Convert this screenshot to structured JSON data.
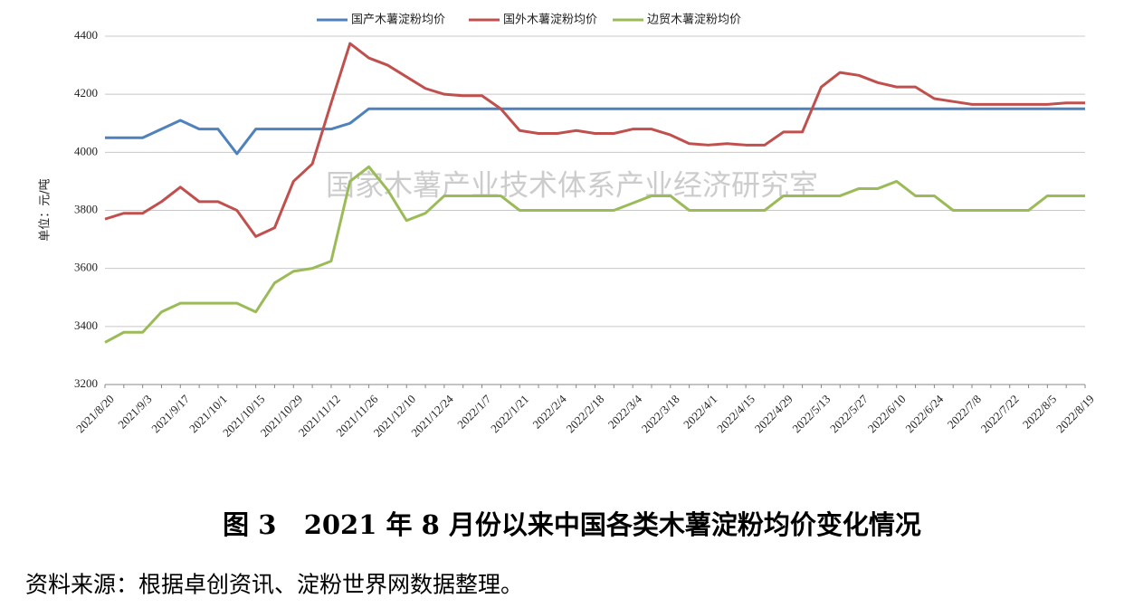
{
  "chart_data": {
    "type": "line",
    "y_label": "单位：元/吨",
    "watermark": "国家木薯产业技术体系产业经济研究室",
    "caption": "图 3   2021 年 8 月份以来中国各类木薯淀粉均价变化情况",
    "source": "资料来源：根据卓创资讯、淀粉世界网数据整理。",
    "categories": [
      "2021/8/20",
      null,
      "2021/9/3",
      null,
      "2021/9/17",
      null,
      "2021/10/1",
      null,
      "2021/10/15",
      null,
      "2021/10/29",
      null,
      "2021/11/12",
      null,
      "2021/11/26",
      null,
      "2021/12/10",
      null,
      "2021/12/24",
      null,
      "2022/1/7",
      null,
      "2022/1/21",
      null,
      "2022/2/4",
      null,
      "2022/2/18",
      null,
      "2022/3/4",
      null,
      "2022/3/18",
      null,
      "2022/4/1",
      null,
      "2022/4/15",
      null,
      "2022/4/29",
      null,
      "2022/5/13",
      null,
      "2022/5/27",
      null,
      "2022/6/10",
      null,
      "2022/6/24",
      null,
      "2022/7/8",
      null,
      "2022/7/22",
      null,
      "2022/8/5",
      null,
      "2022/8/19"
    ],
    "series": [
      {
        "name": "国产木薯淀粉均价",
        "color": "#4f81bd",
        "values": [
          4050,
          4050,
          4050,
          4080,
          4110,
          4080,
          4080,
          3995,
          4080,
          4080,
          4080,
          4080,
          4080,
          4100,
          4150,
          4150,
          4150,
          4150,
          4150,
          4150,
          4150,
          4150,
          4150,
          4150,
          4150,
          4150,
          4150,
          4150,
          4150,
          4150,
          4150,
          4150,
          4150,
          4150,
          4150,
          4150,
          4150,
          4150,
          4150,
          4150,
          4150,
          4150,
          4150,
          4150,
          4150,
          4150,
          4150,
          4150,
          4150,
          4150,
          4150,
          4150,
          4150
        ]
      },
      {
        "name": "国外木薯淀粉均价",
        "color": "#c0504d",
        "values": [
          3770,
          3790,
          3790,
          3830,
          3880,
          3830,
          3830,
          3800,
          3710,
          3740,
          3900,
          3960,
          4170,
          4375,
          4325,
          4300,
          4260,
          4220,
          4200,
          4195,
          4195,
          4150,
          4075,
          4065,
          4065,
          4075,
          4065,
          4065,
          4080,
          4080,
          4060,
          4030,
          4025,
          4030,
          4025,
          4025,
          4070,
          4070,
          4225,
          4275,
          4265,
          4240,
          4225,
          4225,
          4185,
          4175,
          4165,
          4165,
          4165,
          4165,
          4165,
          4170,
          4170
        ]
      },
      {
        "name": "边贸木薯淀粉均价",
        "color": "#9bbb59",
        "values": [
          3345,
          3380,
          3380,
          3450,
          3480,
          3480,
          3480,
          3480,
          3450,
          3550,
          3590,
          3600,
          3625,
          3900,
          3950,
          3870,
          3765,
          3790,
          3850,
          3850,
          3850,
          3850,
          3800,
          3800,
          3800,
          3800,
          3800,
          3800,
          3825,
          3850,
          3850,
          3800,
          3800,
          3800,
          3800,
          3800,
          3850,
          3850,
          3850,
          3850,
          3875,
          3875,
          3900,
          3850,
          3850,
          3800,
          3800,
          3800,
          3800,
          3800,
          3850,
          3850,
          3850
        ]
      }
    ],
    "ylim": [
      3200,
      4400
    ],
    "yticks": [
      3200,
      3400,
      3600,
      3800,
      4000,
      4200,
      4400
    ],
    "grid": true
  }
}
